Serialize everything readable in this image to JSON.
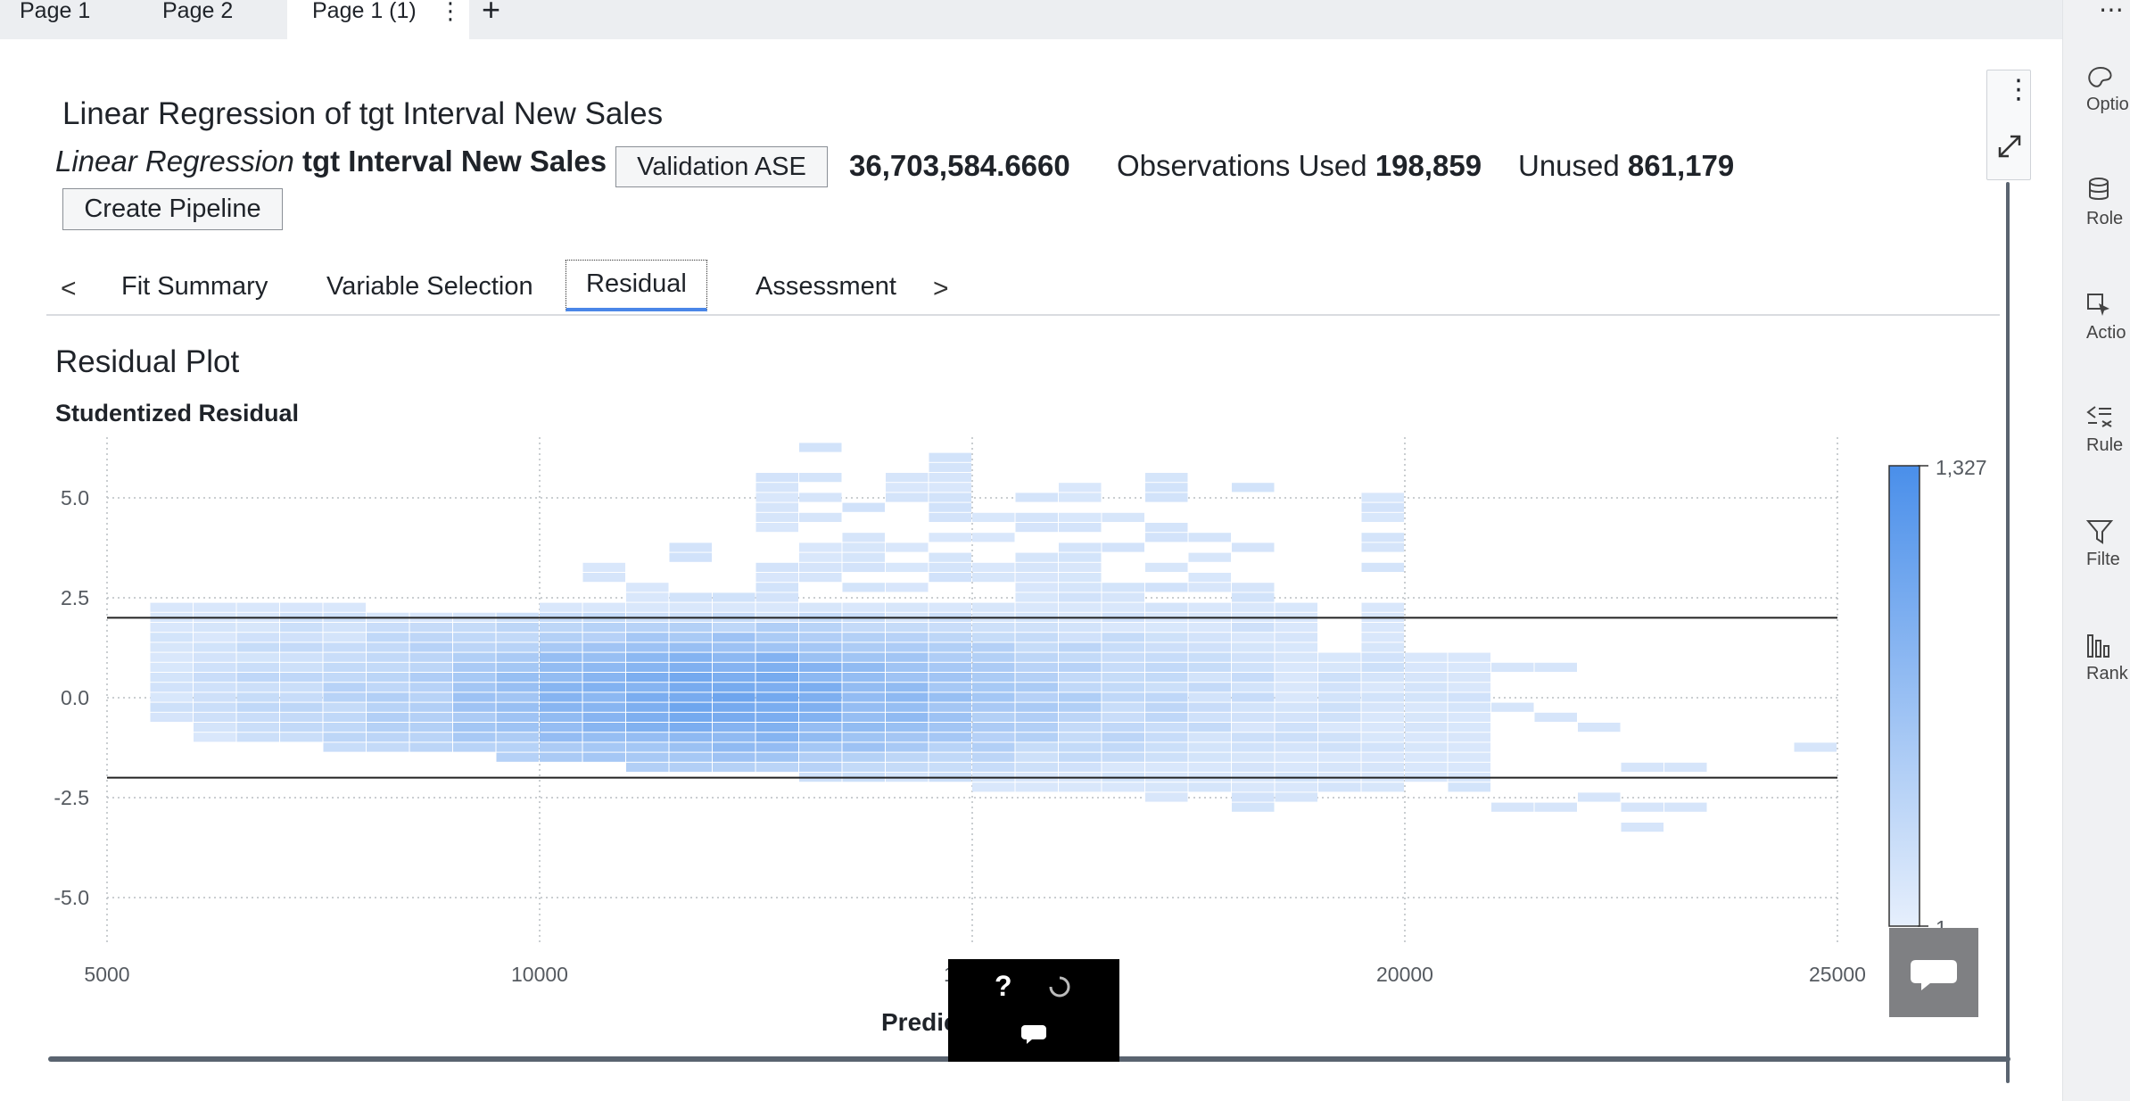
{
  "page_tabs": [
    {
      "label": "Page 1",
      "active": false
    },
    {
      "label": "Page 2",
      "active": false
    },
    {
      "label": "Page 1 (1)",
      "active": true
    }
  ],
  "page_tab_menu_glyph": "⋮",
  "page_tab_add_glyph": "+",
  "right_rail": {
    "more_glyph": "⋯",
    "items": [
      {
        "label": "Optio",
        "icon": "palette-icon"
      },
      {
        "label": "Role",
        "icon": "database-icon"
      },
      {
        "label": "Actio",
        "icon": "cursor-select-icon"
      },
      {
        "label": "Rule",
        "icon": "rules-icon"
      },
      {
        "label": "Filte",
        "icon": "filter-icon"
      },
      {
        "label": "Rank",
        "icon": "bar-chart-icon"
      }
    ]
  },
  "header": {
    "title": "Linear Regression of tgt Interval New Sales",
    "model_type": "Linear Regression",
    "target": "tgt Interval New Sales",
    "validation_button": "Validation ASE",
    "ase_value": "36,703,584.6660",
    "observations_label": "Observations Used",
    "observations_value": "198,859",
    "unused_label": "Unused",
    "unused_value": "861,179",
    "pipeline_button": "Create Pipeline"
  },
  "object_tabs": {
    "prev_glyph": "<",
    "next_glyph": ">",
    "items": [
      {
        "label": "Fit Summary",
        "selected": false
      },
      {
        "label": "Variable Selection",
        "selected": false
      },
      {
        "label": "Residual",
        "selected": true
      },
      {
        "label": "Assessment",
        "selected": false
      }
    ]
  },
  "plot": {
    "title": "Residual Plot",
    "y_title": "Studentized Residual",
    "x_title_visible": "Predic"
  },
  "help_glyph": "?",
  "colors": {
    "accent": "#4a86e8",
    "bin_light": "#dce9fb",
    "bin_dark": "#4a8fea"
  },
  "chart_data": {
    "type": "heatmap",
    "title": "Residual Plot",
    "ylabel": "Studentized Residual",
    "xlabel": "Predic",
    "xlim": [
      5000,
      25000
    ],
    "ylim": [
      -6,
      6.5
    ],
    "x_ticks": [
      5000,
      10000,
      15000,
      20000,
      25000
    ],
    "y_ticks": [
      5.0,
      2.5,
      0.0,
      -2.5,
      -5.0
    ],
    "y_tick_labels": [
      "5.0",
      "2.5",
      "0.0",
      "-2.5",
      "-5.0"
    ],
    "x_tick_labels": [
      "5000",
      "10000",
      "15000",
      "20000",
      "25000"
    ],
    "reference_lines_y": [
      2,
      -2
    ],
    "gradient_legend": {
      "max": "1,327",
      "min": "1"
    },
    "bin_width": 500,
    "bin_height": 0.25,
    "grid": true,
    "columns": [
      {
        "x": 5750,
        "y0": -0.5,
        "y1": 2.5,
        "level": 0.05
      },
      {
        "x": 6250,
        "y0": -1.0,
        "y1": 2.25,
        "level": 0.1
      },
      {
        "x": 6750,
        "y0": -1.0,
        "y1": 2.25,
        "level": 0.15
      },
      {
        "x": 7250,
        "y0": -1.0,
        "y1": 2.25,
        "level": 0.18
      },
      {
        "x": 7750,
        "y0": -1.25,
        "y1": 2.25,
        "level": 0.2
      },
      {
        "x": 8250,
        "y0": -1.25,
        "y1": 2.0,
        "level": 0.25
      },
      {
        "x": 8750,
        "y0": -1.25,
        "y1": 2.0,
        "level": 0.3
      },
      {
        "x": 9250,
        "y0": -1.25,
        "y1": 2.0,
        "level": 0.38
      },
      {
        "x": 9750,
        "y0": -1.5,
        "y1": 2.0,
        "level": 0.45
      },
      {
        "x": 10250,
        "y0": -1.5,
        "y1": 2.5,
        "level": 0.55
      },
      {
        "x": 10750,
        "y0": -1.5,
        "y1": 3.25,
        "level": 0.6
      },
      {
        "x": 11250,
        "y0": -1.75,
        "y1": 2.75,
        "level": 0.65
      },
      {
        "x": 11750,
        "y0": -1.75,
        "y1": 3.75,
        "level": 0.7
      },
      {
        "x": 12250,
        "y0": -1.75,
        "y1": 2.75,
        "level": 0.72
      },
      {
        "x": 12750,
        "y0": -1.75,
        "y1": 6.25,
        "level": 0.7
      },
      {
        "x": 13250,
        "y0": -2.0,
        "y1": 6.25,
        "level": 0.62
      },
      {
        "x": 13750,
        "y0": -2.0,
        "y1": 5.25,
        "level": 0.55
      },
      {
        "x": 14250,
        "y0": -2.0,
        "y1": 5.5,
        "level": 0.5
      },
      {
        "x": 14750,
        "y0": -2.0,
        "y1": 6.0,
        "level": 0.42
      },
      {
        "x": 15250,
        "y0": -2.25,
        "y1": 4.5,
        "level": 0.35
      },
      {
        "x": 15750,
        "y0": -2.25,
        "y1": 5.25,
        "level": 0.3
      },
      {
        "x": 16250,
        "y0": -2.5,
        "y1": 5.5,
        "level": 0.25
      },
      {
        "x": 16750,
        "y0": -2.5,
        "y1": 4.75,
        "level": 0.2
      },
      {
        "x": 17250,
        "y0": -2.5,
        "y1": 5.5,
        "level": 0.16
      },
      {
        "x": 17750,
        "y0": -2.75,
        "y1": 5.0,
        "level": 0.12
      },
      {
        "x": 18250,
        "y0": -2.75,
        "y1": 5.25,
        "level": 0.1
      },
      {
        "x": 18750,
        "y0": -2.75,
        "y1": 2.25,
        "level": 0.07
      },
      {
        "x": 19250,
        "y0": -2.75,
        "y1": 1.0,
        "level": 0.05
      },
      {
        "x": 19750,
        "y0": -2.5,
        "y1": 5.0,
        "level": 0.05
      },
      {
        "x": 20250,
        "y0": -2.0,
        "y1": 1.0,
        "level": 0.03
      },
      {
        "x": 20750,
        "y0": -2.75,
        "y1": 1.0,
        "level": 0.03
      }
    ],
    "sparse_bins": [
      {
        "x": 21250,
        "y": 0.75
      },
      {
        "x": 21750,
        "y": 0.75
      },
      {
        "x": 21250,
        "y": -0.25
      },
      {
        "x": 21750,
        "y": -0.5
      },
      {
        "x": 21250,
        "y": -2.75
      },
      {
        "x": 21750,
        "y": -2.75
      },
      {
        "x": 22250,
        "y": -2.5
      },
      {
        "x": 22250,
        "y": -0.75
      },
      {
        "x": 22750,
        "y": -2.75
      },
      {
        "x": 22750,
        "y": -3.25
      },
      {
        "x": 23250,
        "y": -2.75
      },
      {
        "x": 22750,
        "y": -1.75
      },
      {
        "x": 23250,
        "y": -1.75
      },
      {
        "x": 24750,
        "y": -1.25
      }
    ]
  }
}
